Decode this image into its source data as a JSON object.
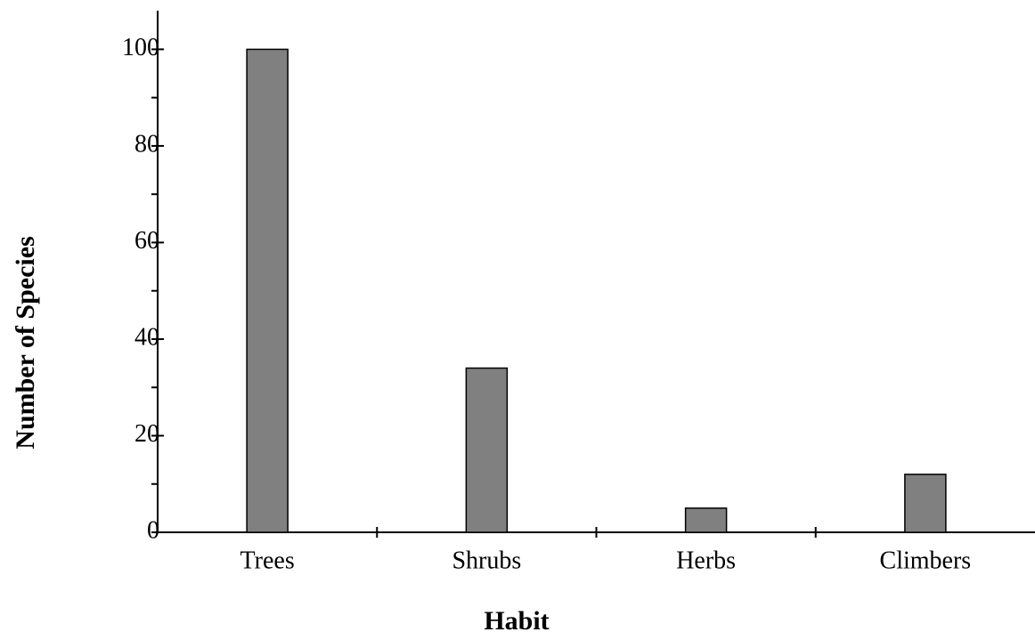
{
  "chart_data": {
    "type": "bar",
    "categories": [
      "Trees",
      "Shrubs",
      "Herbs",
      "Climbers"
    ],
    "values": [
      100,
      34,
      5,
      12
    ],
    "color": "#808080",
    "xlabel": "Habit",
    "ylabel": "Number of Species",
    "ylim": [
      0,
      108
    ],
    "yticks": [
      0,
      20,
      40,
      60,
      80,
      100
    ],
    "yticks_minor": [
      10,
      30,
      50,
      70,
      90
    ],
    "grid": false
  }
}
